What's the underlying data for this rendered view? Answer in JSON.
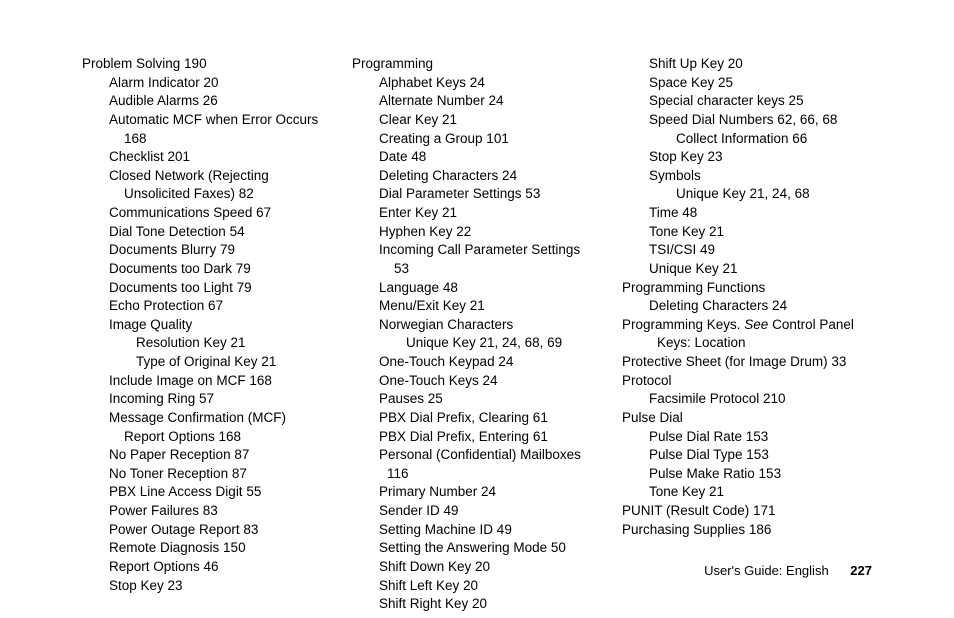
{
  "cols": [
    [
      {
        "l": 0,
        "t": "Problem Solving  190"
      },
      {
        "l": 1,
        "t": "Alarm Indicator  20"
      },
      {
        "l": 1,
        "t": "Audible Alarms  26"
      },
      {
        "l": 1,
        "t": "Automatic MCF when Error Occurs"
      },
      {
        "l": "c1",
        "t": "168"
      },
      {
        "l": 1,
        "t": "Checklist  201"
      },
      {
        "l": 1,
        "t": "Closed Network (Rejecting"
      },
      {
        "l": "c1",
        "t": "Unsolicited Faxes)  82"
      },
      {
        "l": 1,
        "t": "Communications Speed  67"
      },
      {
        "l": 1,
        "t": "Dial Tone Detection  54"
      },
      {
        "l": 1,
        "t": "Documents Blurry  79"
      },
      {
        "l": 1,
        "t": "Documents too Dark  79"
      },
      {
        "l": 1,
        "t": "Documents too Light  79"
      },
      {
        "l": 1,
        "t": "Echo Protection  67"
      },
      {
        "l": 1,
        "t": "Image Quality"
      },
      {
        "l": 2,
        "t": "Resolution Key  21"
      },
      {
        "l": 2,
        "t": "Type of Original Key  21"
      },
      {
        "l": 1,
        "t": "Include Image on MCF  168"
      },
      {
        "l": 1,
        "t": "Incoming Ring  57"
      },
      {
        "l": 1,
        "t": "Message Confirmation (MCF)"
      },
      {
        "l": "c1",
        "t": "Report Options  168"
      },
      {
        "l": 1,
        "t": "No Paper Reception  87"
      },
      {
        "l": 1,
        "t": "No Toner Reception  87"
      },
      {
        "l": 1,
        "t": "PBX Line Access Digit  55"
      },
      {
        "l": 1,
        "t": "Power Failures  83"
      },
      {
        "l": 1,
        "t": "Power Outage Report  83"
      },
      {
        "l": 1,
        "t": "Remote Diagnosis  150"
      },
      {
        "l": 1,
        "t": "Report Options  46"
      },
      {
        "l": 1,
        "t": "Stop Key  23"
      }
    ],
    [
      {
        "l": 0,
        "t": "Programming"
      },
      {
        "l": 1,
        "t": "Alphabet Keys  24"
      },
      {
        "l": 1,
        "t": "Alternate Number  24"
      },
      {
        "l": 1,
        "t": "Clear Key  21"
      },
      {
        "l": 1,
        "t": "Creating a Group  101"
      },
      {
        "l": 1,
        "t": "Date  48"
      },
      {
        "l": 1,
        "t": "Deleting Characters  24"
      },
      {
        "l": 1,
        "t": "Dial Parameter Settings  53"
      },
      {
        "l": 1,
        "t": "Enter Key  21"
      },
      {
        "l": 1,
        "t": "Hyphen Key  22"
      },
      {
        "l": 1,
        "t": "Incoming Call Parameter Settings"
      },
      {
        "l": "c1",
        "t": "53"
      },
      {
        "l": 1,
        "t": "Language  48"
      },
      {
        "l": 1,
        "t": "Menu/Exit Key  21"
      },
      {
        "l": 1,
        "t": "Norwegian Characters"
      },
      {
        "l": 2,
        "t": "Unique Key  21, 24, 68, 69"
      },
      {
        "l": 1,
        "t": "One-Touch Keypad  24"
      },
      {
        "l": 1,
        "t": "One-Touch Keys  24"
      },
      {
        "l": 1,
        "t": "Pauses  25"
      },
      {
        "l": 1,
        "t": "PBX Dial Prefix, Clearing  61"
      },
      {
        "l": 1,
        "t": "PBX Dial Prefix, Entering  61"
      },
      {
        "l": 1,
        "t": "Personal (Confidential) Mailboxes"
      },
      {
        "l": "c2",
        "t": "116"
      },
      {
        "l": 1,
        "t": "Primary Number  24"
      },
      {
        "l": 1,
        "t": "Sender ID  49"
      },
      {
        "l": 1,
        "t": "Setting Machine ID  49"
      },
      {
        "l": 1,
        "t": "Setting the Answering Mode  50"
      },
      {
        "l": 1,
        "t": "Shift Down Key  20"
      },
      {
        "l": 1,
        "t": "Shift Left Key  20"
      },
      {
        "l": 1,
        "t": "Shift Right Key  20"
      }
    ],
    [
      {
        "l": 1,
        "t": "Shift Up Key  20"
      },
      {
        "l": 1,
        "t": "Space Key  25"
      },
      {
        "l": 1,
        "t": "Special character keys  25"
      },
      {
        "l": 1,
        "t": "Speed Dial Numbers  62, 66, 68"
      },
      {
        "l": 2,
        "t": "Collect Information  66"
      },
      {
        "l": 1,
        "t": "Stop Key  23"
      },
      {
        "l": 1,
        "t": "Symbols"
      },
      {
        "l": 2,
        "t": "Unique Key  21, 24, 68"
      },
      {
        "l": 1,
        "t": "Time  48"
      },
      {
        "l": 1,
        "t": "Tone Key  21"
      },
      {
        "l": 1,
        "t": "TSI/CSI  49"
      },
      {
        "l": 1,
        "t": "Unique Key  21"
      },
      {
        "l": 0,
        "t": "Programming Functions"
      },
      {
        "l": 1,
        "t": "Deleting Characters  24"
      },
      {
        "l": 0,
        "t": "Programming Keys. ",
        "see": "See",
        "after": " Control Panel"
      },
      {
        "l": "c2",
        "t": "Keys: Location"
      },
      {
        "l": 0,
        "t": "Protective Sheet (for Image Drum)  33"
      },
      {
        "l": 0,
        "t": "Protocol"
      },
      {
        "l": 1,
        "t": "Facsimile Protocol  210"
      },
      {
        "l": 0,
        "t": "Pulse Dial"
      },
      {
        "l": 1,
        "t": "Pulse Dial Rate  153"
      },
      {
        "l": 1,
        "t": "Pulse Dial Type  153"
      },
      {
        "l": 1,
        "t": "Pulse Make Ratio  153"
      },
      {
        "l": 1,
        "t": "Tone Key  21"
      },
      {
        "l": 0,
        "t": "PUNIT (Result Code)  171"
      },
      {
        "l": 0,
        "t": "Purchasing Supplies  186"
      }
    ]
  ],
  "footer": {
    "text": "User's Guide:  English",
    "page": "227"
  }
}
